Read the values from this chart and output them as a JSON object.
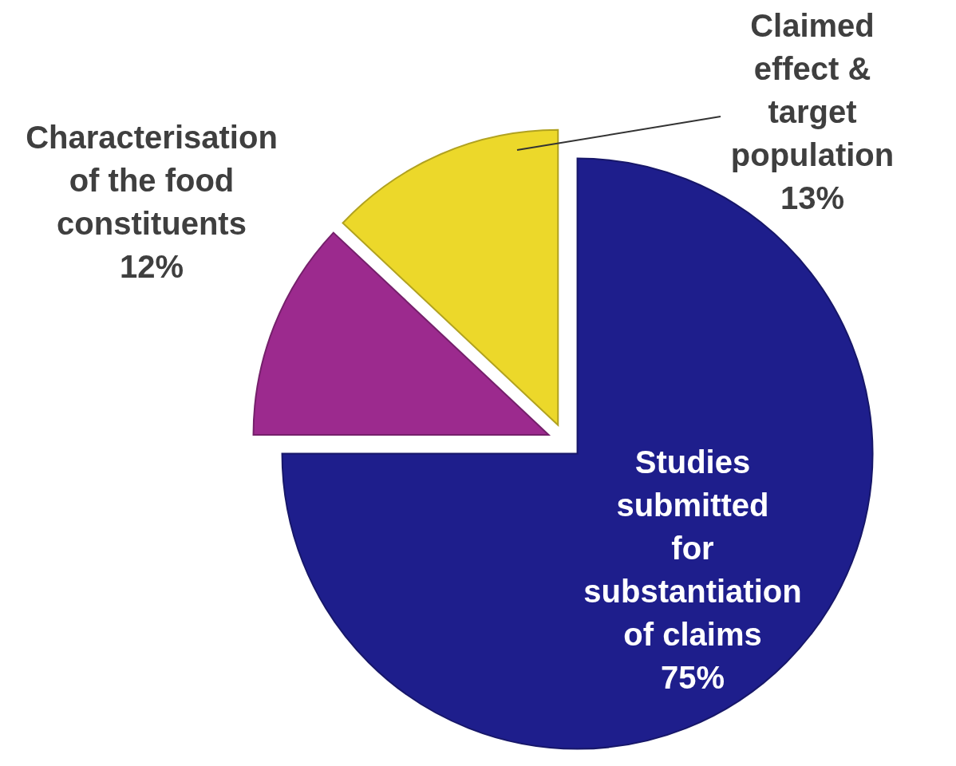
{
  "chart_data": {
    "type": "pie",
    "categories": [
      "Studies submitted for substantiation of claims",
      "Characterisation of the food constituents",
      "Claimed effect & target population"
    ],
    "values": [
      75,
      12,
      13
    ],
    "colors": [
      "#1e1e8c",
      "#9c2a8e",
      "#ecd82a"
    ],
    "value_labels": [
      "75%",
      "12%",
      "13%"
    ]
  }
}
